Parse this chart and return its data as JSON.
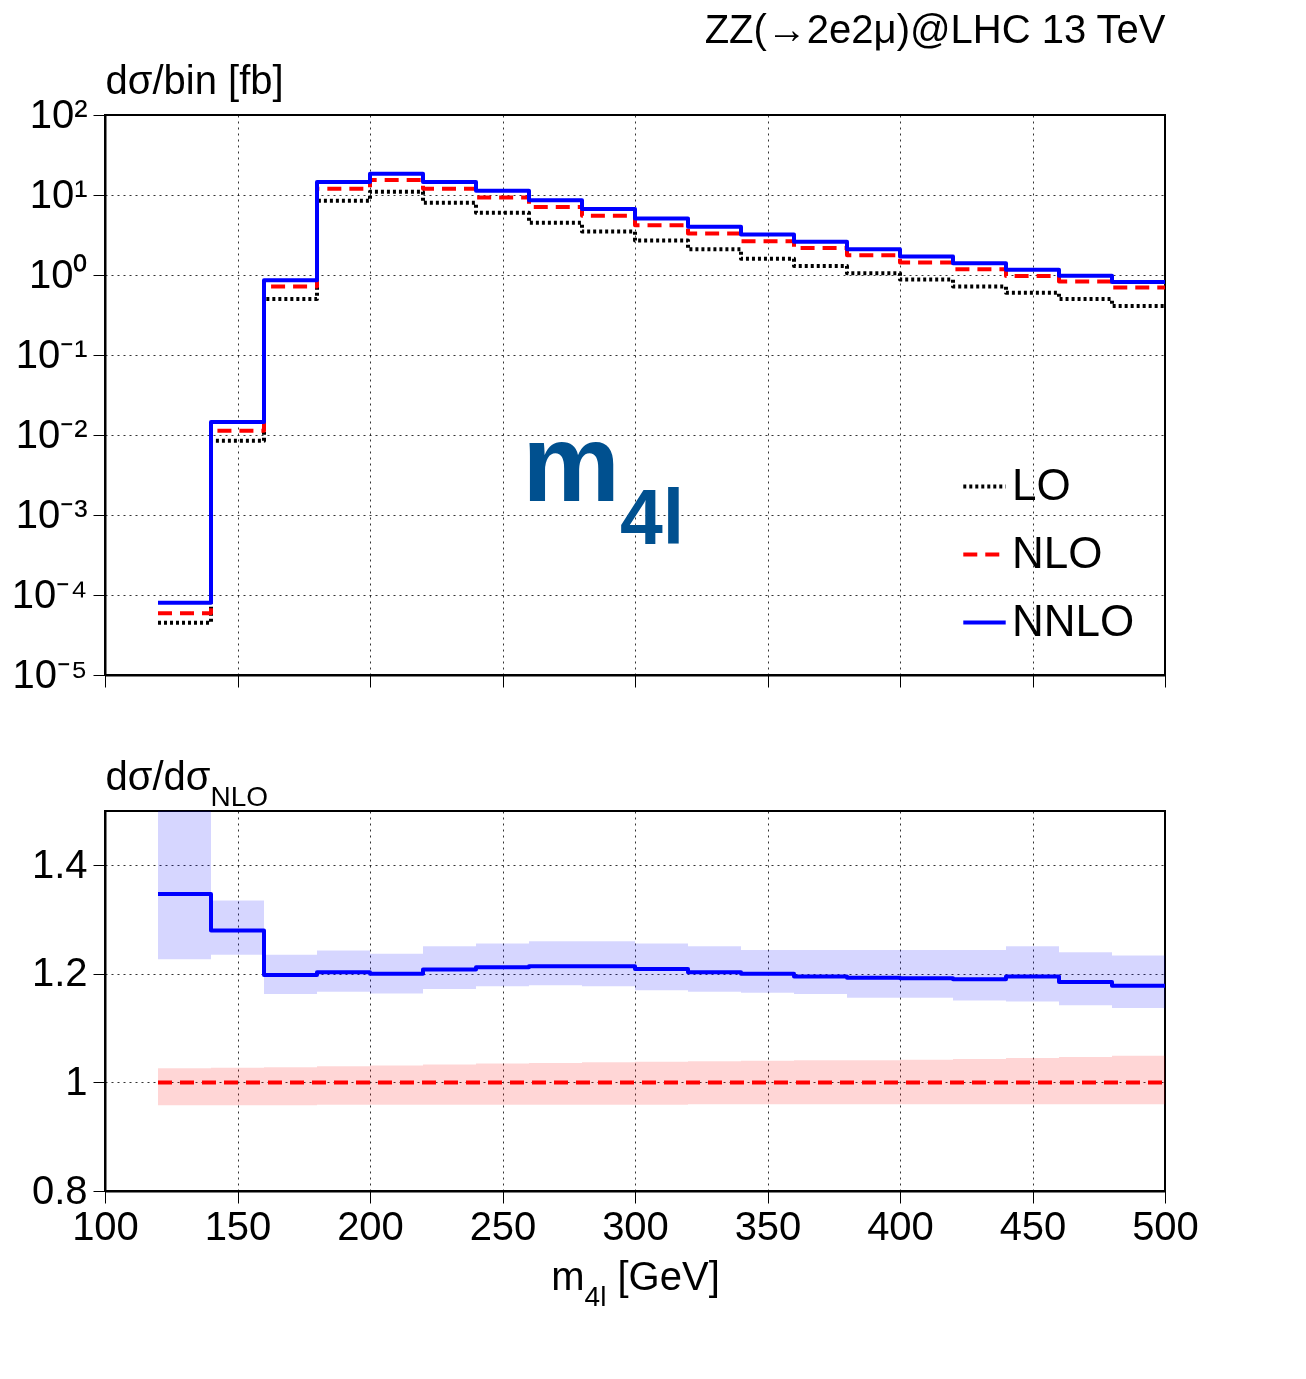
{
  "chart_data": [
    {
      "type": "step",
      "title": "ZZ(→2e2μ)@LHC 13 TeV",
      "ylabel": "dσ/bin [fb]",
      "annotations": [
        "m$_{4l}$"
      ],
      "x": [
        120,
        140,
        160,
        180,
        200,
        220,
        240,
        260,
        280,
        300,
        320,
        340,
        360,
        380,
        400,
        420,
        440,
        460,
        480,
        500
      ],
      "series": [
        {
          "name": "LO",
          "color": "#000000",
          "line_style": "dotted",
          "values": [
            4.5e-05,
            0.0085,
            0.5,
            8.5,
            11,
            8,
            6,
            4.5,
            3.5,
            2.7,
            2.1,
            1.6,
            1.3,
            1.05,
            0.88,
            0.72,
            0.6,
            0.5,
            0.41,
            0.41
          ]
        },
        {
          "name": "NLO",
          "color": "#ff0000",
          "line_style": "dashed",
          "values": [
            5.9e-05,
            0.0113,
            0.72,
            12.0,
            15.4,
            12.0,
            9.3,
            7.1,
            5.5,
            4.2,
            3.3,
            2.65,
            2.17,
            1.76,
            1.43,
            1.18,
            0.97,
            0.83,
            0.7,
            0.7
          ]
        },
        {
          "name": "NNLO",
          "color": "#0000ff",
          "line_style": "solid",
          "values": [
            8e-05,
            0.0145,
            0.86,
            14.5,
            18.5,
            14.5,
            11.3,
            8.6,
            6.7,
            5.1,
            4.0,
            3.2,
            2.6,
            2.1,
            1.7,
            1.4,
            1.16,
            0.98,
            0.82,
            0.82
          ]
        }
      ],
      "xlim": [
        100,
        500
      ],
      "ylim": [
        1e-05,
        100
      ],
      "log": "y",
      "yticks": [
        {
          "value": 1e-05,
          "label": "10⁻⁵"
        },
        {
          "value": 0.0001,
          "label": "10⁻⁴"
        },
        {
          "value": 0.001,
          "label": "10⁻³"
        },
        {
          "value": 0.01,
          "label": "10⁻²"
        },
        {
          "value": 0.1,
          "label": "10⁻¹"
        },
        {
          "value": 1,
          "label": "10⁰"
        },
        {
          "value": 10,
          "label": "10¹"
        },
        {
          "value": 100,
          "label": "10²"
        }
      ],
      "xticks": [
        100,
        150,
        200,
        250,
        300,
        350,
        400,
        450,
        500
      ],
      "tick_labels": "y",
      "grid": true,
      "legend": "bottom right"
    },
    {
      "type": "step",
      "ylabel": "dσ/dσ$_{NLO}$",
      "xlabel": "m$_{4l}$ [GeV]",
      "x": [
        120,
        140,
        160,
        180,
        200,
        220,
        240,
        260,
        280,
        300,
        320,
        340,
        360,
        380,
        400,
        420,
        440,
        460,
        480,
        500
      ],
      "series": [
        {
          "color": "#ff0000",
          "line_style": "dashed",
          "values": [
            1,
            1,
            1,
            1,
            1,
            1,
            1,
            1,
            1,
            1,
            1,
            1,
            1,
            1,
            1,
            1,
            1,
            1,
            1,
            1
          ],
          "lower": [
            0.958,
            0.958,
            0.958,
            0.959,
            0.959,
            0.959,
            0.959,
            0.959,
            0.959,
            0.959,
            0.96,
            0.96,
            0.96,
            0.96,
            0.96,
            0.96,
            0.96,
            0.96,
            0.96,
            0.96
          ],
          "upper": [
            1.026,
            1.027,
            1.028,
            1.03,
            1.031,
            1.033,
            1.035,
            1.036,
            1.037,
            1.038,
            1.039,
            1.04,
            1.041,
            1.041,
            1.042,
            1.043,
            1.045,
            1.047,
            1.049,
            1.049
          ]
        },
        {
          "color": "#0000ff",
          "line_style": "solid",
          "values": [
            1.347,
            1.28,
            1.198,
            1.203,
            1.2,
            1.208,
            1.212,
            1.214,
            1.214,
            1.209,
            1.203,
            1.2,
            1.195,
            1.193,
            1.192,
            1.19,
            1.195,
            1.185,
            1.178,
            1.178
          ],
          "lower": [
            1.227,
            1.235,
            1.163,
            1.167,
            1.164,
            1.172,
            1.177,
            1.179,
            1.177,
            1.17,
            1.167,
            1.165,
            1.163,
            1.156,
            1.156,
            1.151,
            1.149,
            1.142,
            1.137,
            1.137
          ],
          "upper": [
            1.5,
            1.335,
            1.235,
            1.243,
            1.237,
            1.251,
            1.256,
            1.26,
            1.26,
            1.256,
            1.251,
            1.244,
            1.244,
            1.244,
            1.244,
            1.244,
            1.251,
            1.24,
            1.234,
            1.234
          ]
        }
      ],
      "xlim": [
        100,
        500
      ],
      "ylim": [
        0.8,
        1.5
      ],
      "yticks": [
        0.8,
        1,
        1.2,
        1.4
      ],
      "xticks": [
        100,
        150,
        200,
        250,
        300,
        350,
        400,
        450,
        500
      ],
      "grid": true
    }
  ]
}
